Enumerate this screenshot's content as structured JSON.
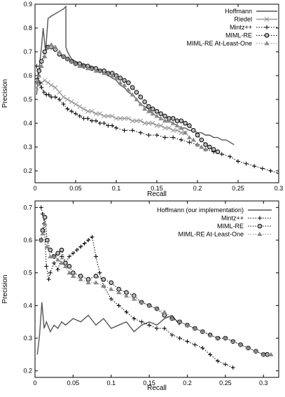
{
  "chart_data": [
    {
      "type": "line",
      "title": "",
      "xlabel": "Recall",
      "ylabel": "Precision",
      "xlim": [
        0,
        0.3
      ],
      "ylim": [
        0.15,
        0.9
      ],
      "xticks": [
        "0",
        "0.05",
        "0.1",
        "0.15",
        "0.2",
        "0.25",
        "0.3"
      ],
      "xtick_values": [
        0,
        0.05,
        0.1,
        0.15,
        0.2,
        0.25,
        0.3
      ],
      "yticks": [
        "0.2",
        "0.3",
        "0.4",
        "0.5",
        "0.6",
        "0.7",
        "0.8",
        "0.9"
      ],
      "ytick_values": [
        0.2,
        0.3,
        0.4,
        0.5,
        0.6,
        0.7,
        0.8,
        0.9
      ],
      "grid": false,
      "legend_position": "top-right",
      "series": [
        {
          "name": "Hoffmann",
          "color": "#555555",
          "line": "solid",
          "marker": "none",
          "x": [
            0.002,
            0.004,
            0.006,
            0.008,
            0.01,
            0.013,
            0.016,
            0.02,
            0.025,
            0.03,
            0.035,
            0.038,
            0.038,
            0.04,
            0.045,
            0.05,
            0.055,
            0.06,
            0.065,
            0.07,
            0.075,
            0.08,
            0.085,
            0.09,
            0.095,
            0.1,
            0.105,
            0.11,
            0.115,
            0.12,
            0.125,
            0.13,
            0.135,
            0.14,
            0.145,
            0.15,
            0.155,
            0.16,
            0.165,
            0.17,
            0.175,
            0.18,
            0.185,
            0.19,
            0.195,
            0.2,
            0.205,
            0.21,
            0.215,
            0.22,
            0.225,
            0.23,
            0.235,
            0.24,
            0.245
          ],
          "y": [
            0.52,
            0.6,
            0.66,
            0.72,
            0.8,
            0.7,
            0.84,
            0.85,
            0.86,
            0.87,
            0.88,
            0.89,
            0.72,
            0.7,
            0.67,
            0.66,
            0.65,
            0.65,
            0.64,
            0.64,
            0.63,
            0.62,
            0.61,
            0.6,
            0.59,
            0.58,
            0.56,
            0.55,
            0.53,
            0.52,
            0.5,
            0.48,
            0.47,
            0.46,
            0.44,
            0.43,
            0.42,
            0.41,
            0.41,
            0.4,
            0.39,
            0.38,
            0.38,
            0.37,
            0.37,
            0.36,
            0.36,
            0.35,
            0.35,
            0.34,
            0.34,
            0.33,
            0.33,
            0.32,
            0.31
          ]
        },
        {
          "name": "Riedel",
          "color": "#999999",
          "line": "solid",
          "marker": "x",
          "x": [
            0.002,
            0.005,
            0.008,
            0.012,
            0.016,
            0.02,
            0.025,
            0.03,
            0.035,
            0.04,
            0.045,
            0.05,
            0.055,
            0.06,
            0.065,
            0.07,
            0.075,
            0.08,
            0.085,
            0.09,
            0.095,
            0.1,
            0.105,
            0.11,
            0.115,
            0.12,
            0.125,
            0.13,
            0.135,
            0.14,
            0.145,
            0.15,
            0.155,
            0.16,
            0.165,
            0.17,
            0.175,
            0.18,
            0.185
          ],
          "y": [
            0.55,
            0.56,
            0.57,
            0.58,
            0.57,
            0.56,
            0.55,
            0.53,
            0.51,
            0.5,
            0.49,
            0.48,
            0.47,
            0.46,
            0.45,
            0.45,
            0.44,
            0.44,
            0.43,
            0.43,
            0.43,
            0.42,
            0.42,
            0.42,
            0.42,
            0.41,
            0.41,
            0.41,
            0.4,
            0.4,
            0.4,
            0.39,
            0.39,
            0.38,
            0.38,
            0.37,
            0.37,
            0.36,
            0.36
          ]
        },
        {
          "name": "Mintz++",
          "color": "#000000",
          "line": "dotted",
          "marker": "+",
          "x": [
            0.002,
            0.004,
            0.006,
            0.008,
            0.011,
            0.014,
            0.017,
            0.02,
            0.025,
            0.03,
            0.035,
            0.04,
            0.045,
            0.05,
            0.055,
            0.06,
            0.065,
            0.07,
            0.075,
            0.08,
            0.085,
            0.09,
            0.095,
            0.1,
            0.11,
            0.12,
            0.13,
            0.14,
            0.15,
            0.16,
            0.17,
            0.18,
            0.19,
            0.2,
            0.21,
            0.22,
            0.23,
            0.24,
            0.25,
            0.26,
            0.27,
            0.28,
            0.29,
            0.3
          ],
          "y": [
            0.64,
            0.6,
            0.57,
            0.55,
            0.53,
            0.52,
            0.52,
            0.51,
            0.51,
            0.5,
            0.48,
            0.46,
            0.45,
            0.44,
            0.43,
            0.42,
            0.42,
            0.41,
            0.41,
            0.4,
            0.4,
            0.39,
            0.39,
            0.38,
            0.37,
            0.37,
            0.36,
            0.35,
            0.35,
            0.34,
            0.34,
            0.33,
            0.32,
            0.31,
            0.29,
            0.28,
            0.27,
            0.26,
            0.24,
            0.23,
            0.22,
            0.21,
            0.2,
            0.19
          ]
        },
        {
          "name": "MIML-RE",
          "color": "#000000",
          "line": "dotted",
          "marker": "circle",
          "x": [
            0.002,
            0.005,
            0.008,
            0.012,
            0.016,
            0.02,
            0.025,
            0.03,
            0.035,
            0.04,
            0.045,
            0.05,
            0.055,
            0.06,
            0.065,
            0.07,
            0.075,
            0.08,
            0.085,
            0.09,
            0.095,
            0.1,
            0.105,
            0.11,
            0.115,
            0.12,
            0.125,
            0.13,
            0.135,
            0.14,
            0.145,
            0.15,
            0.155,
            0.16,
            0.165,
            0.17,
            0.175,
            0.18,
            0.185,
            0.19,
            0.195,
            0.2,
            0.205,
            0.21,
            0.215,
            0.22,
            0.225
          ],
          "y": [
            0.58,
            0.62,
            0.66,
            0.7,
            0.72,
            0.72,
            0.71,
            0.69,
            0.68,
            0.67,
            0.66,
            0.65,
            0.65,
            0.64,
            0.64,
            0.63,
            0.63,
            0.62,
            0.62,
            0.61,
            0.61,
            0.6,
            0.59,
            0.58,
            0.57,
            0.55,
            0.53,
            0.51,
            0.49,
            0.47,
            0.46,
            0.45,
            0.44,
            0.43,
            0.42,
            0.42,
            0.41,
            0.41,
            0.4,
            0.39,
            0.37,
            0.35,
            0.33,
            0.31,
            0.3,
            0.29,
            0.28
          ]
        },
        {
          "name": "MIML-RE At-Least-One",
          "color": "#888888",
          "line": "dotted",
          "marker": "triangle",
          "x": [
            0.002,
            0.005,
            0.008,
            0.012,
            0.016,
            0.02,
            0.025,
            0.03,
            0.035,
            0.04,
            0.045,
            0.05,
            0.055,
            0.06,
            0.065,
            0.07,
            0.075,
            0.08,
            0.085,
            0.09,
            0.095,
            0.1,
            0.105,
            0.11,
            0.115,
            0.12,
            0.125,
            0.13,
            0.135,
            0.14,
            0.145,
            0.15,
            0.155,
            0.16,
            0.165,
            0.17,
            0.175,
            0.18,
            0.185,
            0.19,
            0.195,
            0.2,
            0.205,
            0.21
          ],
          "y": [
            0.57,
            0.6,
            0.64,
            0.68,
            0.72,
            0.73,
            0.72,
            0.7,
            0.68,
            0.67,
            0.66,
            0.65,
            0.64,
            0.64,
            0.63,
            0.63,
            0.62,
            0.62,
            0.61,
            0.61,
            0.6,
            0.59,
            0.57,
            0.56,
            0.54,
            0.52,
            0.5,
            0.48,
            0.46,
            0.45,
            0.44,
            0.43,
            0.42,
            0.41,
            0.41,
            0.4,
            0.39,
            0.38,
            0.36,
            0.34,
            0.33,
            0.31,
            0.3,
            0.29
          ]
        }
      ]
    },
    {
      "type": "line",
      "title": "",
      "xlabel": "Recall",
      "ylabel": "Precision",
      "xlim": [
        0,
        0.32
      ],
      "ylim": [
        0.18,
        0.72
      ],
      "xticks": [
        "0",
        "0.05",
        "0.1",
        "0.15",
        "0.2",
        "0.25",
        "0.3"
      ],
      "xtick_values": [
        0,
        0.05,
        0.1,
        0.15,
        0.2,
        0.25,
        0.3
      ],
      "yticks": [
        "0.2",
        "0.3",
        "0.4",
        "0.5",
        "0.6",
        "0.7"
      ],
      "ytick_values": [
        0.2,
        0.3,
        0.4,
        0.5,
        0.6,
        0.7
      ],
      "grid": false,
      "legend_position": "top-right",
      "series": [
        {
          "name": "Hoffmann (our implementation)",
          "color": "#555555",
          "line": "solid",
          "marker": "none",
          "x": [
            0.003,
            0.006,
            0.009,
            0.012,
            0.015,
            0.02,
            0.025,
            0.03,
            0.035,
            0.04,
            0.05,
            0.06,
            0.07,
            0.08,
            0.09,
            0.1,
            0.11,
            0.12,
            0.13,
            0.14,
            0.15,
            0.16,
            0.17,
            0.18,
            0.19
          ],
          "y": [
            0.25,
            0.31,
            0.41,
            0.33,
            0.35,
            0.32,
            0.34,
            0.33,
            0.35,
            0.34,
            0.36,
            0.35,
            0.37,
            0.34,
            0.36,
            0.33,
            0.34,
            0.35,
            0.32,
            0.34,
            0.35,
            0.34,
            0.36,
            0.37,
            0.34
          ]
        },
        {
          "name": "Mintz++",
          "color": "#000000",
          "line": "dotted",
          "marker": "+",
          "x": [
            0.008,
            0.01,
            0.012,
            0.015,
            0.018,
            0.02,
            0.025,
            0.03,
            0.035,
            0.04,
            0.045,
            0.05,
            0.055,
            0.06,
            0.065,
            0.07,
            0.075,
            0.08,
            0.085,
            0.09,
            0.1,
            0.11,
            0.12,
            0.13,
            0.14,
            0.15,
            0.16,
            0.17,
            0.18,
            0.19,
            0.2,
            0.21,
            0.22,
            0.23,
            0.24,
            0.25,
            0.26
          ],
          "y": [
            0.7,
            0.68,
            0.65,
            0.52,
            0.48,
            0.5,
            0.53,
            0.51,
            0.55,
            0.53,
            0.55,
            0.56,
            0.57,
            0.58,
            0.59,
            0.6,
            0.61,
            0.55,
            0.5,
            0.46,
            0.42,
            0.4,
            0.38,
            0.36,
            0.35,
            0.34,
            0.33,
            0.33,
            0.31,
            0.3,
            0.29,
            0.28,
            0.27,
            0.25,
            0.23,
            0.22,
            0.21
          ]
        },
        {
          "name": "MIML-RE",
          "color": "#000000",
          "line": "dotted",
          "marker": "circle",
          "x": [
            0.008,
            0.01,
            0.013,
            0.016,
            0.02,
            0.025,
            0.03,
            0.035,
            0.04,
            0.045,
            0.05,
            0.06,
            0.07,
            0.08,
            0.09,
            0.1,
            0.11,
            0.12,
            0.13,
            0.14,
            0.15,
            0.16,
            0.17,
            0.18,
            0.19,
            0.2,
            0.21,
            0.22,
            0.23,
            0.24,
            0.25,
            0.26,
            0.27,
            0.28,
            0.29,
            0.3,
            0.305
          ],
          "y": [
            0.6,
            0.63,
            0.67,
            0.6,
            0.57,
            0.55,
            0.56,
            0.57,
            0.53,
            0.52,
            0.5,
            0.49,
            0.48,
            0.49,
            0.48,
            0.47,
            0.45,
            0.44,
            0.43,
            0.41,
            0.4,
            0.39,
            0.37,
            0.36,
            0.35,
            0.34,
            0.33,
            0.32,
            0.31,
            0.3,
            0.3,
            0.29,
            0.28,
            0.27,
            0.26,
            0.25,
            0.25
          ]
        },
        {
          "name": "MIML-RE At-Least-One",
          "color": "#888888",
          "line": "dotted",
          "marker": "triangle",
          "x": [
            0.008,
            0.01,
            0.013,
            0.016,
            0.02,
            0.025,
            0.03,
            0.035,
            0.04,
            0.045,
            0.05,
            0.06,
            0.07,
            0.08,
            0.09,
            0.1,
            0.11,
            0.12,
            0.13,
            0.14,
            0.15,
            0.16,
            0.17,
            0.18,
            0.19,
            0.2,
            0.21,
            0.22,
            0.23,
            0.24,
            0.25,
            0.26,
            0.27,
            0.28,
            0.29,
            0.3,
            0.31
          ],
          "y": [
            0.6,
            0.62,
            0.65,
            0.58,
            0.55,
            0.55,
            0.54,
            0.53,
            0.52,
            0.5,
            0.49,
            0.48,
            0.47,
            0.47,
            0.46,
            0.45,
            0.44,
            0.43,
            0.42,
            0.41,
            0.4,
            0.39,
            0.38,
            0.36,
            0.35,
            0.34,
            0.33,
            0.32,
            0.31,
            0.3,
            0.3,
            0.29,
            0.28,
            0.27,
            0.26,
            0.25,
            0.25
          ]
        }
      ]
    }
  ]
}
